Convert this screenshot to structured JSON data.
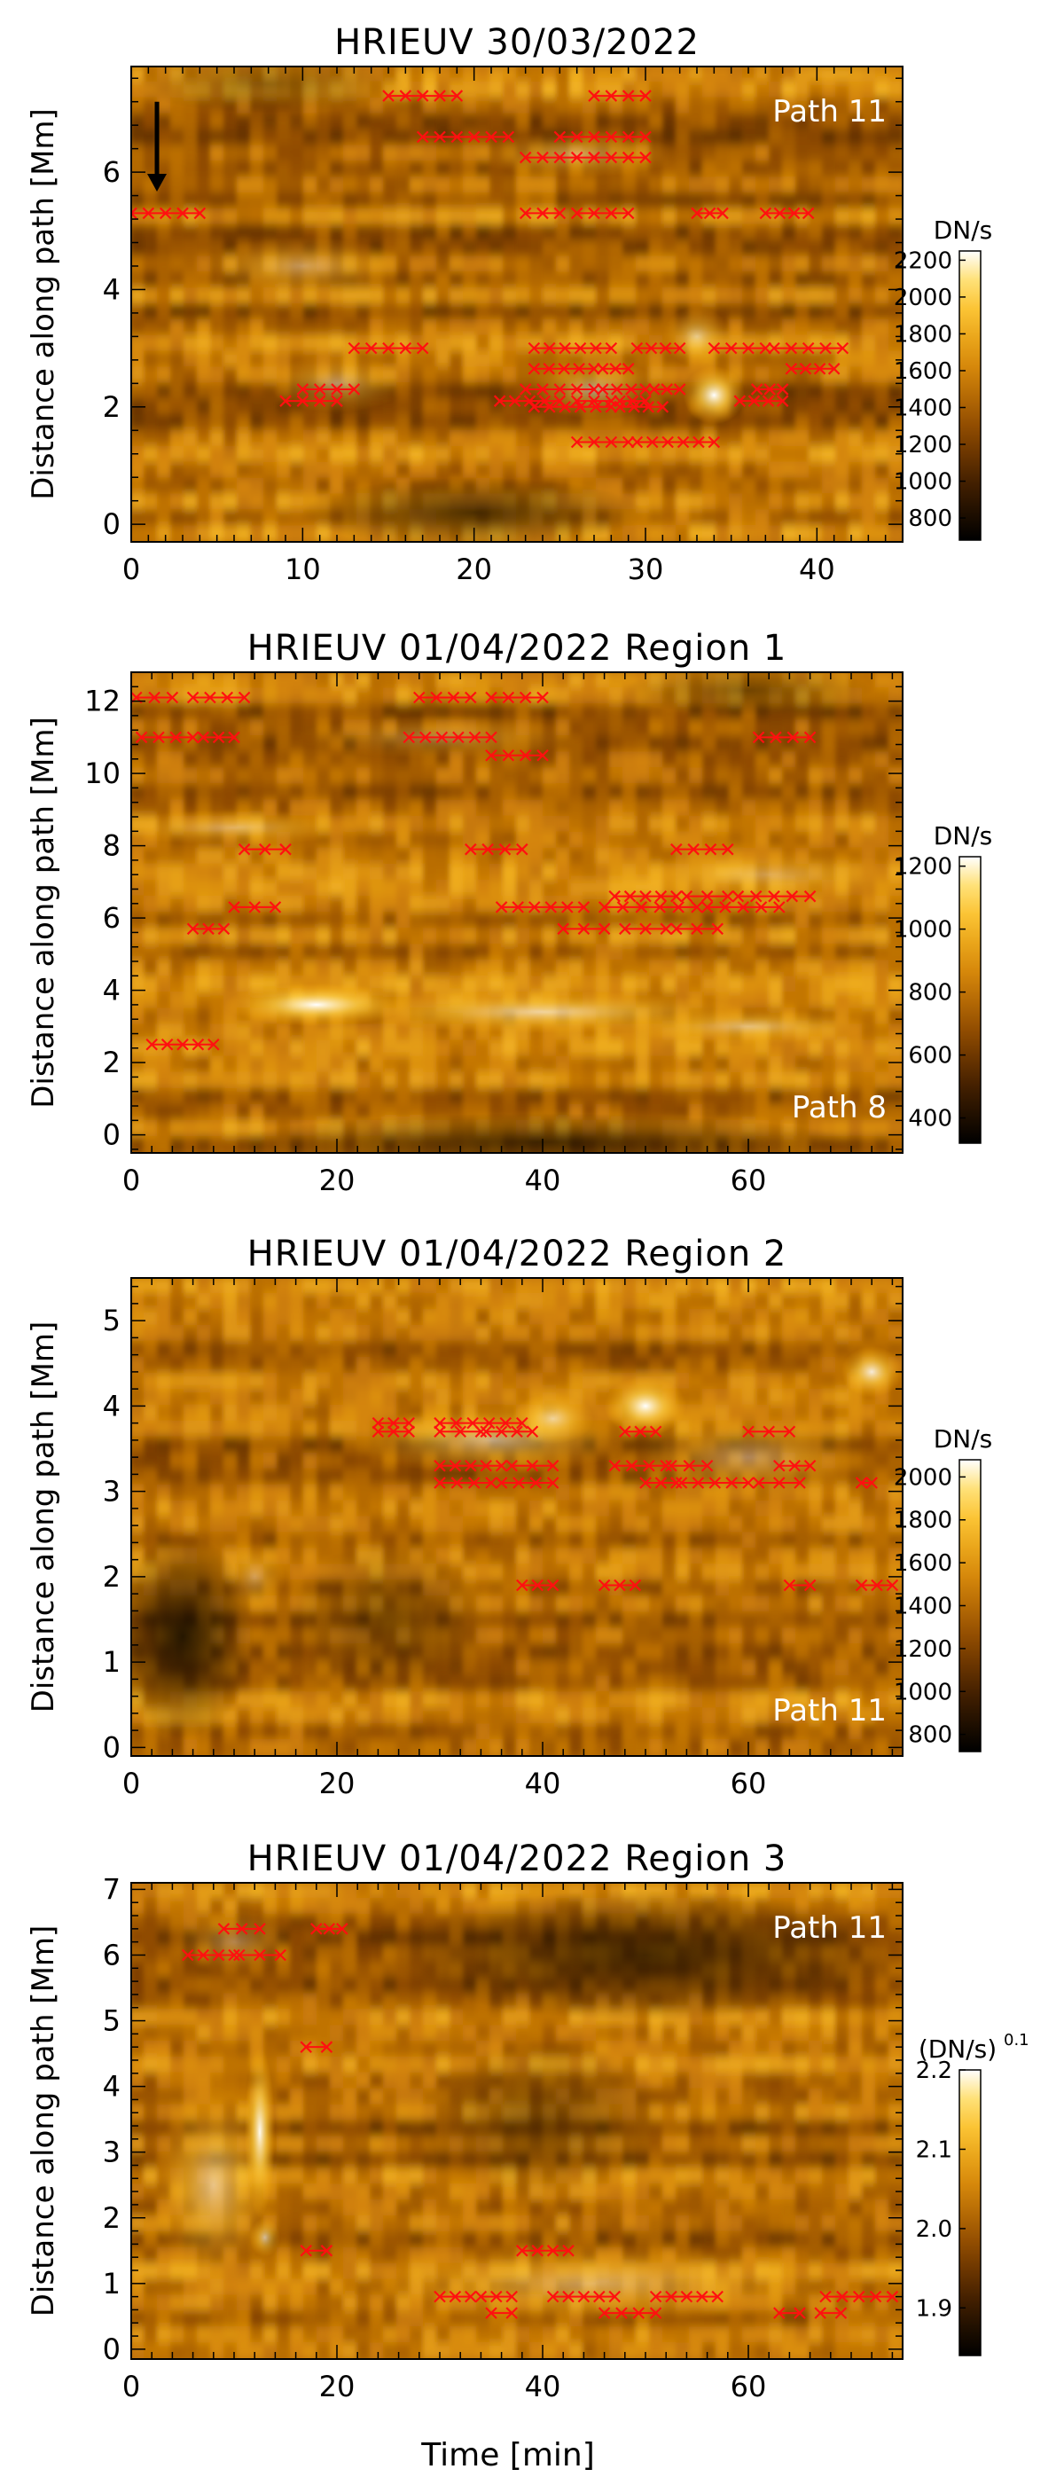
{
  "figure": {
    "xlabel": "Time [min]"
  },
  "chart_data": [
    {
      "type": "heatmap",
      "title": "HRIEUV 30/03/2022",
      "ylabel": "Distance along path [Mm]",
      "xlabel": "",
      "path_label": "Path 11",
      "xlim": [
        0,
        45
      ],
      "ylim": [
        -0.3,
        7.8
      ],
      "xticks": [
        0,
        10,
        20,
        30,
        40
      ],
      "xtick_labels": [
        "0",
        "10",
        "20",
        "30",
        "40"
      ],
      "yticks": [
        0,
        2,
        4,
        6
      ],
      "ytick_labels": [
        "0",
        "2",
        "4",
        "6"
      ],
      "colorbar": {
        "label": "DN/s",
        "range": [
          680,
          2250
        ],
        "ticks": [
          800,
          1000,
          1200,
          1400,
          1600,
          1800,
          2000,
          2200
        ],
        "tick_labels": [
          "800",
          "1000",
          "1200",
          "1400",
          "1600",
          "1800",
          "2000",
          "2200"
        ]
      },
      "arrow": {
        "x": 1.5,
        "y_start": 7.2,
        "y_end": 5.7
      },
      "bright_spots": [
        {
          "x": 34,
          "y": 2.2,
          "sx": 1.8,
          "sy": 0.5,
          "w": 1.0
        },
        {
          "x": 33,
          "y": 3.2,
          "sx": 2.0,
          "sy": 0.5,
          "w": 0.5
        },
        {
          "x": 27,
          "y": 2.3,
          "sx": 4.0,
          "sy": 0.5,
          "w": 0.5
        },
        {
          "x": 12,
          "y": 2.4,
          "sx": 4.0,
          "sy": 0.5,
          "w": 0.4
        },
        {
          "x": 10,
          "y": 4.4,
          "sx": 6.0,
          "sy": 0.5,
          "w": 0.35
        },
        {
          "x": 26,
          "y": 6.3,
          "sx": 6.0,
          "sy": 0.4,
          "w": 0.35
        }
      ],
      "dark_spots": [
        {
          "x": 20,
          "y": 0.2,
          "sx": 10,
          "sy": 0.6,
          "w": 0.6
        },
        {
          "x": 8,
          "y": 7.5,
          "sx": 8,
          "sy": 0.5,
          "w": 0.35
        }
      ],
      "lanes": [
        {
          "y": 7.3,
          "segments": [
            [
              15,
              19
            ],
            [
              27,
              30
            ]
          ]
        },
        {
          "y": 6.6,
          "segments": [
            [
              17,
              22
            ],
            [
              25,
              30
            ]
          ]
        },
        {
          "y": 6.25,
          "segments": [
            [
              23,
              27
            ],
            [
              27,
              30
            ]
          ]
        },
        {
          "y": 5.3,
          "segments": [
            [
              0,
              4
            ],
            [
              23,
              25
            ],
            [
              26,
              29
            ],
            [
              33,
              34.5
            ],
            [
              37,
              39.5
            ]
          ]
        },
        {
          "y": 3.0,
          "segments": [
            [
              13,
              17
            ],
            [
              23.5,
              28
            ],
            [
              29.5,
              32
            ],
            [
              34,
              37
            ],
            [
              37.5,
              41.5
            ]
          ]
        },
        {
          "y": 2.65,
          "segments": [
            [
              23.5,
              27
            ],
            [
              27.5,
              29
            ],
            [
              38.5,
              41
            ]
          ]
        },
        {
          "y": 2.3,
          "segments": [
            [
              10,
              13
            ],
            [
              23,
              27
            ],
            [
              27.5,
              30
            ],
            [
              30.5,
              32
            ],
            [
              36.5,
              38
            ]
          ]
        },
        {
          "y": 2.1,
          "segments": [
            [
              9,
              12
            ],
            [
              21.5,
              25
            ],
            [
              26,
              28
            ],
            [
              28.5,
              30
            ],
            [
              35.5,
              38
            ]
          ]
        },
        {
          "y": 2.0,
          "segments": [
            [
              23.5,
              28
            ],
            [
              28.5,
              31
            ]
          ]
        },
        {
          "y": 1.4,
          "segments": [
            [
              26,
              29
            ],
            [
              29.5,
              34
            ]
          ]
        }
      ]
    },
    {
      "type": "heatmap",
      "title": "HRIEUV 01/04/2022   Region 1",
      "ylabel": "Distance along path [Mm]",
      "xlabel": "",
      "path_label": "Path 8",
      "xlim": [
        0,
        75
      ],
      "ylim": [
        -0.5,
        12.8
      ],
      "xticks": [
        0,
        20,
        40,
        60
      ],
      "xtick_labels": [
        "0",
        "20",
        "40",
        "60"
      ],
      "yticks": [
        0,
        2,
        4,
        6,
        8,
        10,
        12
      ],
      "ytick_labels": [
        "0",
        "2",
        "4",
        "6",
        "8",
        "10",
        "12"
      ],
      "colorbar": {
        "label": "DN/s",
        "range": [
          320,
          1230
        ],
        "ticks": [
          400,
          600,
          800,
          1000,
          1200
        ],
        "tick_labels": [
          "400",
          "600",
          "800",
          "1000",
          "1200"
        ]
      },
      "bright_spots": [
        {
          "x": 18,
          "y": 3.6,
          "sx": 9,
          "sy": 0.6,
          "w": 1.0
        },
        {
          "x": 40,
          "y": 3.4,
          "sx": 20,
          "sy": 0.6,
          "w": 0.6
        },
        {
          "x": 60,
          "y": 3.0,
          "sx": 12,
          "sy": 0.5,
          "w": 0.45
        },
        {
          "x": 10,
          "y": 8.5,
          "sx": 12,
          "sy": 0.5,
          "w": 0.35
        },
        {
          "x": 62,
          "y": 7.2,
          "sx": 14,
          "sy": 0.7,
          "w": 0.3
        },
        {
          "x": 30,
          "y": 11.0,
          "sx": 14,
          "sy": 0.6,
          "w": 0.25
        }
      ],
      "dark_spots": [
        {
          "x": 40,
          "y": -0.2,
          "sx": 30,
          "sy": 0.8,
          "w": 0.6
        },
        {
          "x": 60,
          "y": 12.3,
          "sx": 12,
          "sy": 0.7,
          "w": 0.4
        }
      ],
      "lanes": [
        {
          "y": 12.1,
          "segments": [
            [
              0.5,
              4
            ],
            [
              6,
              11
            ],
            [
              28,
              33
            ],
            [
              35,
              40
            ]
          ]
        },
        {
          "y": 11.0,
          "segments": [
            [
              1,
              6
            ],
            [
              7,
              10
            ],
            [
              27,
              35
            ],
            [
              61,
              66
            ]
          ]
        },
        {
          "y": 10.5,
          "segments": [
            [
              35,
              40
            ]
          ]
        },
        {
          "y": 7.9,
          "segments": [
            [
              11,
              15
            ],
            [
              33,
              38
            ],
            [
              53,
              58
            ]
          ]
        },
        {
          "y": 6.6,
          "segments": [
            [
              47,
              53
            ],
            [
              54,
              58
            ],
            [
              59,
              66
            ]
          ]
        },
        {
          "y": 6.3,
          "segments": [
            [
              10,
              14
            ],
            [
              36,
              44
            ],
            [
              46,
              55
            ],
            [
              56,
              63
            ]
          ]
        },
        {
          "y": 5.7,
          "segments": [
            [
              6,
              9
            ],
            [
              42,
              46
            ],
            [
              48,
              52
            ],
            [
              53,
              57
            ]
          ]
        },
        {
          "y": 2.5,
          "segments": [
            [
              2,
              8
            ]
          ]
        }
      ]
    },
    {
      "type": "heatmap",
      "title": "HRIEUV 01/04/2022   Region 2",
      "ylabel": "Distance along path [Mm]",
      "xlabel": "",
      "path_label": "Path 11",
      "xlim": [
        0,
        75
      ],
      "ylim": [
        -0.1,
        5.5
      ],
      "xticks": [
        0,
        20,
        40,
        60
      ],
      "xtick_labels": [
        "0",
        "20",
        "40",
        "60"
      ],
      "yticks": [
        0,
        1,
        2,
        3,
        4,
        5
      ],
      "ytick_labels": [
        "0",
        "1",
        "2",
        "3",
        "4",
        "5"
      ],
      "colorbar": {
        "label": "DN/s",
        "range": [
          720,
          2080
        ],
        "ticks": [
          800,
          1000,
          1200,
          1400,
          1600,
          1800,
          2000
        ],
        "tick_labels": [
          "800",
          "1000",
          "1200",
          "1400",
          "1600",
          "1800",
          "2000"
        ]
      },
      "bright_spots": [
        {
          "x": 50,
          "y": 4.0,
          "sx": 4,
          "sy": 0.35,
          "w": 1.0
        },
        {
          "x": 41,
          "y": 3.85,
          "sx": 4,
          "sy": 0.3,
          "w": 0.7
        },
        {
          "x": 72,
          "y": 4.4,
          "sx": 3,
          "sy": 0.3,
          "w": 0.85
        },
        {
          "x": 35,
          "y": 3.6,
          "sx": 14,
          "sy": 0.4,
          "w": 0.5
        },
        {
          "x": 60,
          "y": 3.4,
          "sx": 12,
          "sy": 0.5,
          "w": 0.35
        },
        {
          "x": 12,
          "y": 2.0,
          "sx": 3,
          "sy": 0.4,
          "w": 0.3
        }
      ],
      "dark_spots": [
        {
          "x": 5,
          "y": 1.3,
          "sx": 7,
          "sy": 1.2,
          "w": 0.8
        },
        {
          "x": 25,
          "y": 1.5,
          "sx": 10,
          "sy": 0.9,
          "w": 0.35
        }
      ],
      "lanes": [
        {
          "y": 3.8,
          "segments": [
            [
              24,
              27
            ],
            [
              30,
              38
            ]
          ]
        },
        {
          "y": 3.7,
          "segments": [
            [
              24,
              27
            ],
            [
              30,
              34
            ],
            [
              34.5,
              39
            ],
            [
              48,
              51
            ],
            [
              60,
              64
            ]
          ]
        },
        {
          "y": 3.3,
          "segments": [
            [
              30,
              36
            ],
            [
              37,
              41
            ],
            [
              47,
              52
            ],
            [
              52.5,
              56
            ],
            [
              63,
              66
            ]
          ]
        },
        {
          "y": 3.1,
          "segments": [
            [
              30,
              35
            ],
            [
              36,
              41
            ],
            [
              50,
              53
            ],
            [
              53.5,
              60
            ],
            [
              61,
              65
            ],
            [
              71,
              72
            ]
          ]
        },
        {
          "y": 1.9,
          "segments": [
            [
              38,
              41
            ],
            [
              46,
              49
            ],
            [
              64,
              66
            ],
            [
              71,
              74
            ]
          ]
        }
      ]
    },
    {
      "type": "heatmap",
      "title": "HRIEUV 01/04/2022   Region 3",
      "ylabel": "Distance along path [Mm]",
      "xlabel": "Time [min]",
      "path_label": "Path 11",
      "xlim": [
        0,
        75
      ],
      "ylim": [
        -0.15,
        7.1
      ],
      "xticks": [
        0,
        20,
        40,
        60
      ],
      "xtick_labels": [
        "0",
        "20",
        "40",
        "60"
      ],
      "yticks": [
        0,
        1,
        2,
        3,
        4,
        5,
        6,
        7
      ],
      "ytick_labels": [
        "0",
        "1",
        "2",
        "3",
        "4",
        "5",
        "6",
        "7"
      ],
      "colorbar": {
        "label": "(DN/s)",
        "label_exp": "0.1",
        "range": [
          1.84,
          2.2
        ],
        "ticks": [
          1.9,
          2.0,
          2.1,
          2.2
        ],
        "tick_labels": [
          "1.9",
          "2.0",
          "2.1",
          "2.2"
        ]
      },
      "bright_spots": [
        {
          "x": 12.5,
          "y": 3.3,
          "sx": 1.5,
          "sy": 1.3,
          "w": 1.0
        },
        {
          "x": 13,
          "y": 1.7,
          "sx": 1.5,
          "sy": 0.3,
          "w": 0.6
        },
        {
          "x": 8,
          "y": 2.5,
          "sx": 6,
          "sy": 1.5,
          "w": 0.5
        },
        {
          "x": 45,
          "y": 1.0,
          "sx": 25,
          "sy": 0.6,
          "w": 0.35
        },
        {
          "x": 10,
          "y": 6.2,
          "sx": 6,
          "sy": 0.5,
          "w": 0.3
        }
      ],
      "dark_spots": [
        {
          "x": 50,
          "y": 6.0,
          "sx": 25,
          "sy": 1.0,
          "w": 0.6
        },
        {
          "x": 40,
          "y": 3.5,
          "sx": 12,
          "sy": 1.2,
          "w": 0.35
        }
      ],
      "lanes": [
        {
          "y": 6.4,
          "segments": [
            [
              9,
              12.5
            ],
            [
              18,
              20.5
            ]
          ]
        },
        {
          "y": 6.0,
          "segments": [
            [
              5.5,
              10
            ],
            [
              10.5,
              14.5
            ]
          ]
        },
        {
          "y": 4.6,
          "segments": [
            [
              17,
              19
            ]
          ]
        },
        {
          "y": 1.5,
          "segments": [
            [
              17,
              19
            ],
            [
              38,
              42.5
            ]
          ]
        },
        {
          "y": 0.8,
          "segments": [
            [
              30,
              33
            ],
            [
              34,
              37
            ],
            [
              41,
              47
            ],
            [
              51,
              57
            ],
            [
              67.5,
              74
            ]
          ]
        },
        {
          "y": 0.55,
          "segments": [
            [
              35,
              37
            ],
            [
              46,
              51
            ],
            [
              63,
              65
            ],
            [
              67,
              69
            ]
          ]
        }
      ]
    }
  ],
  "colors": {
    "marker": "#ff1010",
    "axis": "#000000",
    "label_on_plot": "#ffffff"
  }
}
